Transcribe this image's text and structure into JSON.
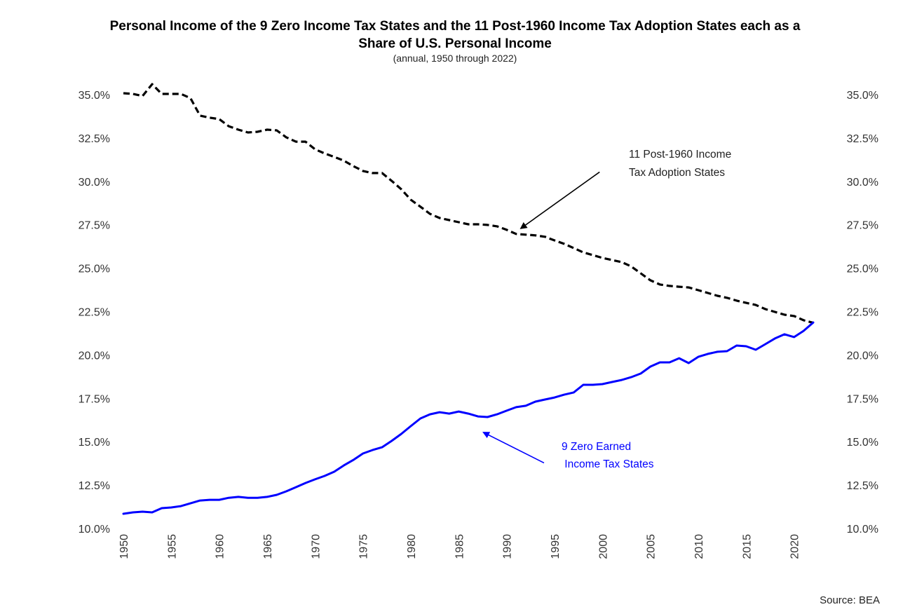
{
  "chart_data": {
    "type": "line",
    "title_line1": "Personal Income of the 9 Zero Income Tax States and the 11 Post-1960 Income Tax Adoption States each as a",
    "title_line2": "Share of U.S. Personal Income",
    "subtitle": "(annual, 1950 through 2022)",
    "source": "Source: BEA",
    "xlabel": "",
    "ylabel": "",
    "xlim": [
      1950,
      2022
    ],
    "ylim": [
      10.0,
      35.0
    ],
    "grid": false,
    "x_ticks": [
      "1950",
      "1955",
      "1960",
      "1965",
      "1970",
      "1975",
      "1980",
      "1985",
      "1990",
      "1995",
      "2000",
      "2005",
      "2010",
      "2015",
      "2020"
    ],
    "y_ticks": [
      "35.0%",
      "32.5%",
      "30.0%",
      "27.5%",
      "25.0%",
      "22.5%",
      "20.0%",
      "17.5%",
      "15.0%",
      "12.5%",
      "10.0%"
    ],
    "x": [
      1950,
      1951,
      1952,
      1953,
      1954,
      1955,
      1956,
      1957,
      1958,
      1959,
      1960,
      1961,
      1962,
      1963,
      1964,
      1965,
      1966,
      1967,
      1968,
      1969,
      1970,
      1971,
      1972,
      1973,
      1974,
      1975,
      1976,
      1977,
      1978,
      1979,
      1980,
      1981,
      1982,
      1983,
      1984,
      1985,
      1986,
      1987,
      1988,
      1989,
      1990,
      1991,
      1992,
      1993,
      1994,
      1995,
      1996,
      1997,
      1998,
      1999,
      2000,
      2001,
      2002,
      2003,
      2004,
      2005,
      2006,
      2007,
      2008,
      2009,
      2010,
      2011,
      2012,
      2013,
      2014,
      2015,
      2016,
      2017,
      2018,
      2019,
      2020,
      2021,
      2022
    ],
    "series": [
      {
        "name": "11 Post-1960 Income Tax Adoption States",
        "color": "#000000",
        "style": "dashed",
        "values": [
          35.08,
          35.04,
          34.92,
          35.6,
          35.04,
          35.04,
          35.04,
          34.8,
          33.79,
          33.67,
          33.59,
          33.18,
          32.98,
          32.82,
          32.86,
          32.98,
          32.94,
          32.54,
          32.29,
          32.29,
          31.85,
          31.61,
          31.41,
          31.2,
          30.88,
          30.6,
          30.48,
          30.48,
          30.03,
          29.55,
          28.94,
          28.54,
          28.13,
          27.89,
          27.77,
          27.65,
          27.53,
          27.53,
          27.49,
          27.41,
          27.21,
          26.97,
          26.93,
          26.89,
          26.81,
          26.6,
          26.4,
          26.16,
          25.91,
          25.75,
          25.59,
          25.47,
          25.35,
          25.1,
          24.7,
          24.3,
          24.06,
          23.98,
          23.93,
          23.89,
          23.73,
          23.57,
          23.41,
          23.29,
          23.13,
          23.0,
          22.88,
          22.64,
          22.48,
          22.32,
          22.24,
          22.0,
          21.85
        ]
      },
      {
        "name": "9 Zero Earned Income Tax States",
        "color": "#0000ff",
        "style": "solid",
        "values": [
          10.85,
          10.93,
          10.97,
          10.93,
          11.17,
          11.21,
          11.29,
          11.45,
          11.61,
          11.65,
          11.65,
          11.77,
          11.82,
          11.77,
          11.77,
          11.82,
          11.94,
          12.14,
          12.38,
          12.62,
          12.83,
          13.03,
          13.27,
          13.63,
          13.95,
          14.32,
          14.52,
          14.68,
          15.05,
          15.45,
          15.9,
          16.34,
          16.58,
          16.7,
          16.62,
          16.74,
          16.62,
          16.46,
          16.42,
          16.58,
          16.79,
          16.99,
          17.07,
          17.31,
          17.43,
          17.55,
          17.71,
          17.84,
          18.28,
          18.28,
          18.32,
          18.44,
          18.56,
          18.72,
          18.93,
          19.33,
          19.57,
          19.57,
          19.81,
          19.53,
          19.89,
          20.06,
          20.18,
          20.22,
          20.54,
          20.5,
          20.3,
          20.62,
          20.95,
          21.19,
          21.03,
          21.39,
          21.87
        ]
      }
    ],
    "annotations": [
      {
        "lines": [
          "11 Post-1960 Income",
          "Tax Adoption States"
        ],
        "color": "#000000",
        "arrow_to": {
          "x": 1991.5,
          "y": 27.3
        },
        "arrow_from": {
          "x": 1999.7,
          "y": 30.54
        }
      },
      {
        "lines": [
          "9 Zero Earned",
          " Income Tax States"
        ],
        "color": "#0000ff",
        "arrow_to": {
          "x": 1987.6,
          "y": 15.53
        },
        "arrow_from": {
          "x": 1993.9,
          "y": 13.78
        }
      }
    ]
  }
}
